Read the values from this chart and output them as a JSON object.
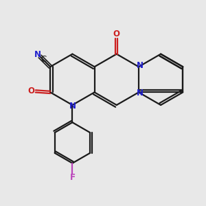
{
  "bg_color": "#e8e8e8",
  "bond_color": "#1a1a1a",
  "N_color": "#2020cc",
  "O_color": "#cc2020",
  "F_color": "#bb44bb",
  "line_width": 1.6,
  "doffset": 0.055,
  "figsize": [
    3.0,
    3.0
  ],
  "dpi": 100,
  "xlim": [
    0,
    10
  ],
  "ylim": [
    0,
    10
  ],
  "label_fontsize": 8.5
}
